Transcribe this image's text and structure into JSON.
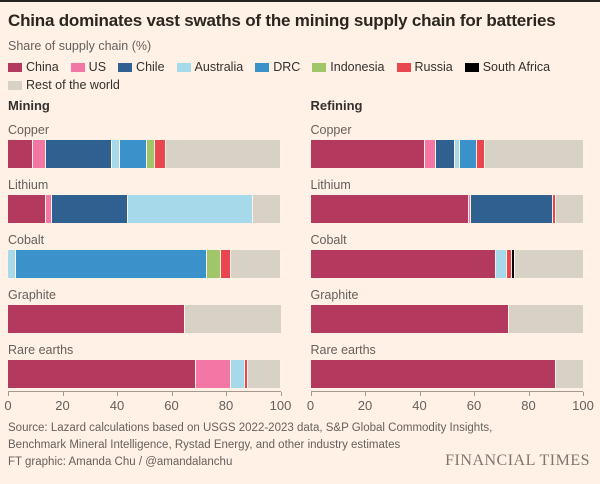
{
  "title": "China dominates vast swaths of the mining supply chain for batteries",
  "subtitle": "Share of supply chain (%)",
  "colors": {
    "background": "#fff1e5",
    "title_text": "#2b2620",
    "muted_text": "#66605c",
    "axis": "#a39a8f",
    "series": {
      "China": "#b4395f",
      "US": "#f377a4",
      "Chile": "#30608f",
      "Australia": "#a6d9e9",
      "DRC": "#3b92cb",
      "Indonesia": "#a0c66a",
      "Russia": "#e8474f",
      "South Africa": "#000000",
      "Rest of the world": "#d8d1c6"
    }
  },
  "legend": {
    "items": [
      "China",
      "US",
      "Chile",
      "Australia",
      "DRC",
      "Indonesia",
      "Russia",
      "South Africa",
      "Rest of the world"
    ]
  },
  "chart_data": {
    "type": "bar",
    "stacked": true,
    "orientation": "horizontal",
    "unit": "%",
    "xlim": [
      0,
      100
    ],
    "x_ticks": [
      0,
      20,
      40,
      60,
      80,
      100
    ],
    "series_order": [
      "China",
      "US",
      "Chile",
      "Australia",
      "DRC",
      "Indonesia",
      "Russia",
      "South Africa",
      "Rest of the world"
    ],
    "panels": [
      {
        "title": "Mining",
        "rows": [
          {
            "category": "Copper",
            "segments": [
              {
                "name": "China",
                "value": 9
              },
              {
                "name": "US",
                "value": 5
              },
              {
                "name": "Chile",
                "value": 24
              },
              {
                "name": "Australia",
                "value": 3
              },
              {
                "name": "DRC",
                "value": 10
              },
              {
                "name": "Indonesia",
                "value": 3
              },
              {
                "name": "Russia",
                "value": 4
              },
              {
                "name": "Rest of the world",
                "value": 42
              }
            ]
          },
          {
            "category": "Lithium",
            "segments": [
              {
                "name": "China",
                "value": 14
              },
              {
                "name": "US",
                "value": 2
              },
              {
                "name": "Chile",
                "value": 28
              },
              {
                "name": "Australia",
                "value": 46
              },
              {
                "name": "Rest of the world",
                "value": 10
              }
            ]
          },
          {
            "category": "Cobalt",
            "segments": [
              {
                "name": "Australia",
                "value": 3
              },
              {
                "name": "DRC",
                "value": 70
              },
              {
                "name": "Indonesia",
                "value": 5
              },
              {
                "name": "Russia",
                "value": 4
              },
              {
                "name": "Rest of the world",
                "value": 18
              }
            ]
          },
          {
            "category": "Graphite",
            "segments": [
              {
                "name": "China",
                "value": 65
              },
              {
                "name": "Rest of the world",
                "value": 35
              }
            ]
          },
          {
            "category": "Rare earths",
            "segments": [
              {
                "name": "China",
                "value": 69
              },
              {
                "name": "US",
                "value": 13
              },
              {
                "name": "Australia",
                "value": 5
              },
              {
                "name": "Russia",
                "value": 1
              },
              {
                "name": "Rest of the world",
                "value": 12
              }
            ]
          }
        ]
      },
      {
        "title": "Refining",
        "rows": [
          {
            "category": "Copper",
            "segments": [
              {
                "name": "China",
                "value": 42
              },
              {
                "name": "US",
                "value": 4
              },
              {
                "name": "Chile",
                "value": 7
              },
              {
                "name": "Australia",
                "value": 2
              },
              {
                "name": "DRC",
                "value": 6
              },
              {
                "name": "Russia",
                "value": 3
              },
              {
                "name": "Rest of the world",
                "value": 36
              }
            ]
          },
          {
            "category": "Lithium",
            "segments": [
              {
                "name": "China",
                "value": 58
              },
              {
                "name": "US",
                "value": 1
              },
              {
                "name": "Chile",
                "value": 30
              },
              {
                "name": "Russia",
                "value": 1
              },
              {
                "name": "Rest of the world",
                "value": 10
              }
            ]
          },
          {
            "category": "Cobalt",
            "segments": [
              {
                "name": "China",
                "value": 68
              },
              {
                "name": "Australia",
                "value": 4
              },
              {
                "name": "Russia",
                "value": 2
              },
              {
                "name": "South Africa",
                "value": 1
              },
              {
                "name": "Rest of the world",
                "value": 25
              }
            ]
          },
          {
            "category": "Graphite",
            "segments": [
              {
                "name": "China",
                "value": 73
              },
              {
                "name": "Rest of the world",
                "value": 27
              }
            ]
          },
          {
            "category": "Rare earths",
            "segments": [
              {
                "name": "China",
                "value": 90
              },
              {
                "name": "Rest of the world",
                "value": 10
              }
            ]
          }
        ]
      }
    ]
  },
  "footer": {
    "source_lines": [
      "Source: Lazard calculations based on USGS 2022-2023 data, S&P Global Commodity Insights,",
      "Benchmark Mineral Intelligence, Rystad Energy, and other industry estimates",
      "FT graphic: Amanda Chu / @amandalanchu"
    ],
    "logo": "FINANCIAL TIMES"
  }
}
